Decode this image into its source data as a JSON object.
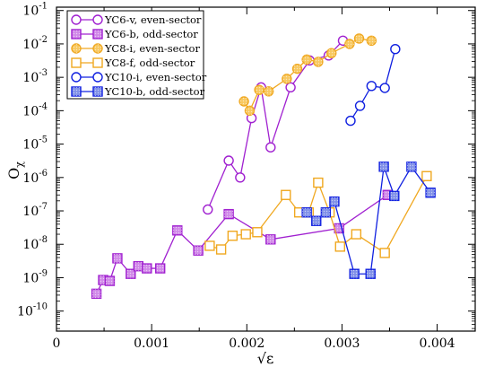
{
  "chart_data": {
    "type": "line",
    "xlabel": "√ε",
    "ylabel": "O",
    "ylabel_sub": "χ",
    "xlim": [
      0,
      0.0044
    ],
    "ylim_exp": [
      -10.6,
      -0.9
    ],
    "yscale": "log",
    "legend_position": "top-left",
    "x_ticks": [
      "0",
      "0.001",
      "0.002",
      "0.003",
      "0.004"
    ],
    "x_tick_values": [
      0,
      0.001,
      0.002,
      0.003,
      0.004
    ],
    "y_tick_exps": [
      -10,
      -9,
      -8,
      -7,
      -6,
      -5,
      -4,
      -3,
      -2,
      -1
    ],
    "y_tick_base": "10",
    "series": [
      {
        "name": "YC6-v, even-sector",
        "color": "#a020d0",
        "marker": "circle",
        "fill": "none",
        "points": [
          [
            0.00159,
            1.1e-07
          ],
          [
            0.00181,
            3.2e-06
          ],
          [
            0.00193,
            1e-06
          ],
          [
            0.00205,
            6e-05
          ],
          [
            0.00215,
            0.0005
          ],
          [
            0.00225,
            8e-06
          ],
          [
            0.00246,
            0.0005
          ],
          [
            0.00266,
            0.0032
          ],
          [
            0.00286,
            0.0045
          ],
          [
            0.00301,
            0.0125
          ]
        ]
      },
      {
        "name": "YC6-b, odd-sector",
        "color": "#a020d0",
        "marker": "square",
        "fill": "#d088e8",
        "points": [
          [
            0.00042,
            3.3e-10
          ],
          [
            0.00049,
            8.5e-10
          ],
          [
            0.00056,
            8e-10
          ],
          [
            0.00064,
            3.8e-09
          ],
          [
            0.00078,
            1.3e-09
          ],
          [
            0.00086,
            2.2e-09
          ],
          [
            0.00095,
            1.9e-09
          ],
          [
            0.00109,
            1.9e-09
          ],
          [
            0.00127,
            2.6e-08
          ],
          [
            0.00149,
            6.5e-09
          ],
          [
            0.00181,
            8e-08
          ],
          [
            0.00225,
            1.4e-08
          ],
          [
            0.00297,
            3e-08
          ],
          [
            0.00348,
            3e-07
          ]
        ]
      },
      {
        "name": "YC8-i, even-sector",
        "color": "#f0a820",
        "marker": "circle",
        "fill": "#f8c860",
        "points": [
          [
            0.00197,
            0.00019
          ],
          [
            0.00203,
            0.0001
          ],
          [
            0.00213,
            0.00042
          ],
          [
            0.00223,
            0.00038
          ],
          [
            0.00242,
            0.0009
          ],
          [
            0.00253,
            0.0018
          ],
          [
            0.00263,
            0.0034
          ],
          [
            0.00275,
            0.0029
          ],
          [
            0.00289,
            0.0053
          ],
          [
            0.00308,
            0.01
          ],
          [
            0.00318,
            0.0145
          ],
          [
            0.00331,
            0.0125
          ]
        ]
      },
      {
        "name": "YC8-f, odd-sector",
        "color": "#f0a820",
        "marker": "square",
        "fill": "none",
        "points": [
          [
            0.00161,
            9e-09
          ],
          [
            0.00173,
            7e-09
          ],
          [
            0.00185,
            1.8e-08
          ],
          [
            0.00199,
            2e-08
          ],
          [
            0.00211,
            2.3e-08
          ],
          [
            0.00241,
            3e-07
          ],
          [
            0.00255,
            9e-08
          ],
          [
            0.00265,
            9e-08
          ],
          [
            0.00275,
            7e-07
          ],
          [
            0.00287,
            9e-08
          ],
          [
            0.00298,
            8.5e-09
          ],
          [
            0.00315,
            2e-08
          ],
          [
            0.00345,
            5.5e-09
          ],
          [
            0.00389,
            1.1e-06
          ]
        ]
      },
      {
        "name": "YC10-i, even-sector",
        "color": "#1020e0",
        "marker": "circle",
        "fill": "none",
        "points": [
          [
            0.00309,
            5e-05
          ],
          [
            0.00319,
            0.00014
          ],
          [
            0.00331,
            0.00055
          ],
          [
            0.00345,
            0.00048
          ],
          [
            0.00356,
            0.007
          ]
        ]
      },
      {
        "name": "YC10-b, odd-sector",
        "color": "#1020e0",
        "marker": "square",
        "fill": "#8090e8",
        "points": [
          [
            0.00263,
            9e-08
          ],
          [
            0.00273,
            5e-08
          ],
          [
            0.00283,
            9e-08
          ],
          [
            0.00292,
            1.9e-07
          ],
          [
            0.00313,
            1.3e-09
          ],
          [
            0.0033,
            1.3e-09
          ],
          [
            0.00344,
            2.1e-06
          ],
          [
            0.00355,
            2.8e-07
          ],
          [
            0.00373,
            2.1e-06
          ],
          [
            0.00393,
            3.5e-07
          ]
        ]
      }
    ]
  }
}
